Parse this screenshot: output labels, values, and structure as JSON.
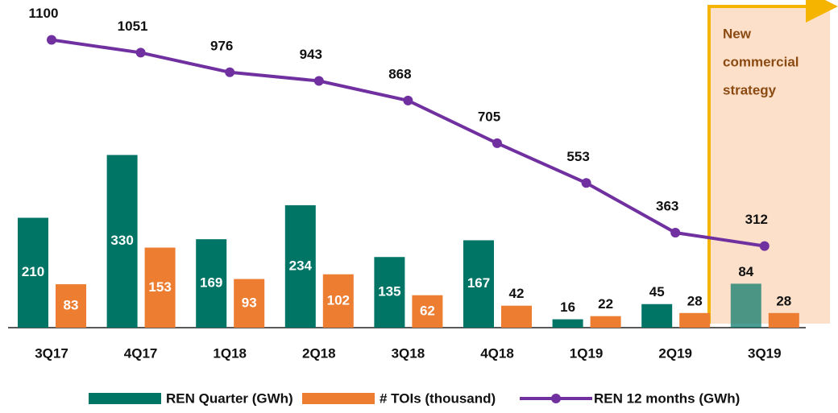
{
  "chart_data": {
    "type": "bar-line",
    "categories": [
      "3Q17",
      "4Q17",
      "1Q18",
      "2Q18",
      "3Q18",
      "4Q18",
      "1Q19",
      "2Q19",
      "3Q19"
    ],
    "series": [
      {
        "name": "REN Quarter (GWh)",
        "color": "#007566",
        "type": "bar",
        "values": [
          210,
          330,
          169,
          234,
          135,
          167,
          16,
          45,
          84
        ]
      },
      {
        "name": "# TOIs (thousand)",
        "color": "#ed7d31",
        "type": "bar",
        "values": [
          83,
          153,
          93,
          102,
          62,
          42,
          22,
          28,
          28
        ]
      },
      {
        "name": "REN 12 months (GWh)",
        "color": "#7030a0",
        "type": "line",
        "axis": "y2",
        "values": [
          1100,
          1051,
          976,
          943,
          868,
          705,
          553,
          363,
          312
        ]
      }
    ],
    "ylim": [
      0,
      600
    ],
    "y2lim": [
      0,
      1200
    ],
    "annotation": [
      "New",
      "commercial",
      "strategy"
    ],
    "legend": "bottom"
  }
}
